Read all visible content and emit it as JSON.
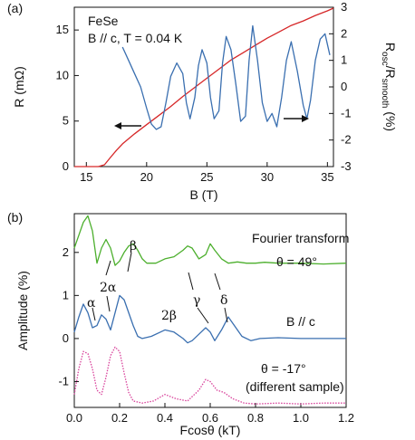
{
  "chart_data": [
    {
      "panel_label": "(a)",
      "type": "line",
      "annotations": [
        "FeSe",
        "B // c, T = 0.04 K"
      ],
      "xlabel": "B (T)",
      "xlim": [
        14,
        35.5
      ],
      "xticks": [
        15,
        20,
        25,
        30,
        35
      ],
      "y_left": {
        "label": "R (mΩ)",
        "ylim": [
          0,
          17.5
        ],
        "ticks": [
          0,
          5,
          10,
          15
        ]
      },
      "y_right": {
        "label_main": "R",
        "label_sub1": "osc",
        "label_mid": "/R",
        "label_sub2": "smooth",
        "label_unit": " (%)",
        "ylim": [
          -3,
          3
        ],
        "ticks": [
          3,
          2,
          1,
          0,
          -1,
          -2,
          -3
        ]
      },
      "arrows": {
        "left": "points to left axis (red)",
        "right": "points to right axis (blue)"
      },
      "series": [
        {
          "color": "#d62728",
          "axis": "left",
          "x": [
            14,
            15,
            16,
            16.5,
            17,
            17.5,
            18,
            19,
            20,
            21,
            22,
            23,
            24,
            25,
            26,
            27,
            28,
            29,
            30,
            31,
            32,
            33,
            34,
            35,
            35.5
          ],
          "y": [
            0,
            0,
            0,
            0.2,
            1.0,
            1.8,
            2.5,
            3.6,
            4.6,
            5.6,
            6.6,
            7.7,
            8.7,
            9.7,
            10.7,
            11.7,
            12.5,
            13.3,
            14.1,
            14.8,
            15.5,
            16.0,
            16.6,
            17.1,
            17.4
          ]
        },
        {
          "color": "#3a6fb0",
          "axis": "right",
          "x": [
            18,
            18.5,
            19,
            19.5,
            20,
            20.4,
            20.8,
            21.2,
            21.6,
            22,
            22.5,
            23,
            23.3,
            23.6,
            24,
            24.3,
            24.6,
            25,
            25.3,
            25.6,
            26,
            26.3,
            26.6,
            27,
            27.4,
            27.8,
            28.2,
            28.5,
            28.8,
            29.2,
            29.6,
            30,
            30.4,
            30.8,
            31.2,
            31.6,
            32,
            32.5,
            33,
            33.3,
            33.6,
            34,
            34.4,
            34.8,
            35.2
          ],
          "y": [
            1.5,
            1.0,
            0.5,
            0.0,
            -0.8,
            -1.4,
            -1.6,
            -1.5,
            -0.6,
            0.4,
            0.9,
            0.5,
            -0.6,
            -1.2,
            -0.4,
            0.8,
            1.4,
            0.9,
            -0.4,
            -1.2,
            -0.9,
            0.9,
            1.9,
            1.4,
            0.1,
            -1.3,
            -1.1,
            1.0,
            2.3,
            1.0,
            -0.6,
            -1.3,
            -1.0,
            -1.5,
            -0.4,
            1.0,
            1.7,
            0.6,
            -0.7,
            -1.2,
            -0.5,
            1.0,
            1.8,
            2.0,
            1.2
          ]
        }
      ]
    },
    {
      "panel_label": "(b)",
      "type": "line",
      "xlabel": "Fcosθ (kT)",
      "ylabel": "Amplitude (%)",
      "xlim": [
        0,
        1.2
      ],
      "ylim": [
        -1.6,
        2.9
      ],
      "xticks": [
        "0.0",
        "0.2",
        "0.4",
        "0.6",
        "0.8",
        "1.0",
        "1.2"
      ],
      "yticks": [
        -1,
        0,
        1,
        2
      ],
      "annotations": {
        "title": "Fourier transform",
        "series1": "θ = 49°",
        "series2": "B // c",
        "series3": [
          "θ = -17°",
          "(different sample)"
        ]
      },
      "peak_labels": [
        "α",
        "2α",
        "β",
        "2β",
        "γ",
        "δ"
      ],
      "series": [
        {
          "color": "#4caf2d",
          "style": "solid",
          "x": [
            0,
            0.02,
            0.04,
            0.06,
            0.08,
            0.1,
            0.12,
            0.14,
            0.16,
            0.18,
            0.2,
            0.22,
            0.24,
            0.26,
            0.28,
            0.3,
            0.32,
            0.36,
            0.4,
            0.44,
            0.48,
            0.5,
            0.52,
            0.55,
            0.58,
            0.6,
            0.62,
            0.65,
            0.68,
            0.72,
            0.76,
            0.8,
            0.84,
            0.9,
            1.0,
            1.1,
            1.2
          ],
          "y": [
            2.1,
            2.4,
            2.7,
            2.85,
            2.5,
            1.75,
            2.1,
            2.3,
            2.1,
            1.7,
            1.8,
            2.0,
            2.15,
            2.2,
            2.05,
            1.85,
            1.75,
            1.75,
            1.85,
            1.9,
            2.05,
            2.15,
            2.1,
            1.85,
            1.95,
            2.2,
            2.05,
            1.85,
            1.75,
            1.78,
            1.75,
            1.75,
            1.77,
            1.75,
            1.75,
            1.73,
            1.75
          ]
        },
        {
          "color": "#3a6fb0",
          "style": "solid",
          "x": [
            0,
            0.02,
            0.04,
            0.06,
            0.08,
            0.1,
            0.12,
            0.14,
            0.16,
            0.18,
            0.2,
            0.22,
            0.24,
            0.26,
            0.28,
            0.3,
            0.34,
            0.38,
            0.4,
            0.44,
            0.48,
            0.5,
            0.52,
            0.55,
            0.58,
            0.6,
            0.62,
            0.65,
            0.68,
            0.7,
            0.74,
            0.78,
            0.82,
            0.9,
            1.0,
            1.1,
            1.2
          ],
          "y": [
            0.15,
            0.5,
            0.8,
            0.6,
            0.25,
            0.3,
            0.55,
            0.45,
            0.2,
            0.6,
            1.0,
            0.9,
            0.6,
            0.3,
            0.05,
            0.0,
            0.05,
            0.15,
            0.2,
            0.15,
            0.0,
            -0.1,
            -0.05,
            0.1,
            0.25,
            0.15,
            -0.05,
            0.2,
            0.5,
            0.35,
            0.05,
            -0.05,
            0.0,
            0.02,
            0.0,
            0.0,
            0.0
          ]
        },
        {
          "color": "#d8409a",
          "style": "dotted",
          "x": [
            0,
            0.02,
            0.04,
            0.06,
            0.08,
            0.1,
            0.12,
            0.14,
            0.16,
            0.18,
            0.2,
            0.22,
            0.24,
            0.26,
            0.3,
            0.35,
            0.4,
            0.45,
            0.5,
            0.55,
            0.58,
            0.6,
            0.63,
            0.66,
            0.7,
            0.75,
            0.8,
            0.9,
            1.0,
            1.1,
            1.2
          ],
          "y": [
            -1.3,
            -0.7,
            -0.3,
            -0.35,
            -0.7,
            -1.2,
            -1.3,
            -0.9,
            -0.4,
            -0.2,
            -0.3,
            -0.8,
            -1.25,
            -1.45,
            -1.5,
            -1.45,
            -1.3,
            -1.4,
            -1.45,
            -1.2,
            -0.95,
            -1.0,
            -1.2,
            -1.25,
            -1.4,
            -1.5,
            -1.52,
            -1.5,
            -1.52,
            -1.5,
            -1.5
          ]
        }
      ]
    }
  ]
}
